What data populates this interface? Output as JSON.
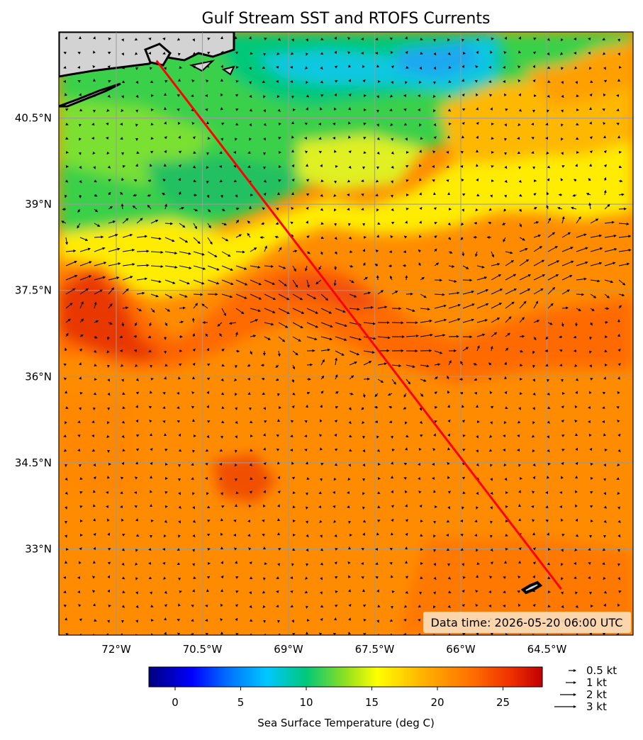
{
  "title": "Gulf Stream SST and RTOFS Currents",
  "data_time": "Data time: 2026-05-20 06:00 UTC",
  "colorbar": {
    "label": "Sea Surface Temperature (deg C)",
    "ticks": [
      "0",
      "5",
      "10",
      "15",
      "20",
      "25"
    ],
    "tick_values": [
      0,
      5,
      10,
      15,
      20,
      25
    ],
    "range": [
      -2,
      28
    ]
  },
  "quiver_legend": [
    {
      "label": "0.5 kt",
      "speed": 0.5
    },
    {
      "label": "1 kt",
      "speed": 1
    },
    {
      "label": "2 kt",
      "speed": 2
    },
    {
      "label": "3 kt",
      "speed": 3
    }
  ],
  "map": {
    "lon_range": [
      -73,
      -63
    ],
    "lat_range": [
      31.5,
      42
    ],
    "x_ticks": [
      {
        "label": "72°W",
        "value": -72
      },
      {
        "label": "70.5°W",
        "value": -70.5
      },
      {
        "label": "69°W",
        "value": -69
      },
      {
        "label": "67.5°W",
        "value": -67.5
      },
      {
        "label": "66°W",
        "value": -66
      },
      {
        "label": "64.5°W",
        "value": -64.5
      }
    ],
    "y_ticks": [
      {
        "label": "40.5°N",
        "value": 40.5
      },
      {
        "label": "39°N",
        "value": 39
      },
      {
        "label": "37.5°N",
        "value": 37.5
      },
      {
        "label": "36°N",
        "value": 36
      },
      {
        "label": "34.5°N",
        "value": 34.5
      },
      {
        "label": "33°N",
        "value": 33
      }
    ],
    "route": {
      "start": {
        "lon": -71.3,
        "lat": 41.5
      },
      "end": {
        "lon": -64.25,
        "lat": 32.3
      },
      "color": "#ff0000"
    }
  }
}
